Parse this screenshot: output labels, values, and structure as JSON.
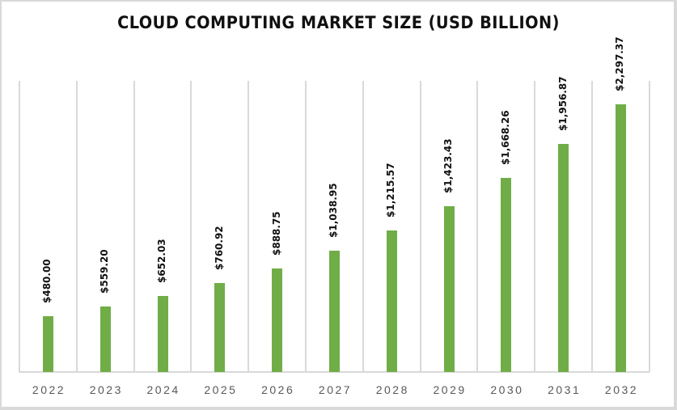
{
  "chart_data": {
    "type": "bar",
    "title": "CLOUD COMPUTING MARKET SIZE (USD BILLION)",
    "xlabel": "",
    "ylabel": "",
    "categories": [
      "2022",
      "2023",
      "2024",
      "2025",
      "2026",
      "2027",
      "2028",
      "2029",
      "2030",
      "2031",
      "2032"
    ],
    "values": [
      480.0,
      559.2,
      652.03,
      760.92,
      888.75,
      1038.95,
      1215.57,
      1423.43,
      1668.26,
      1956.87,
      2297.37
    ],
    "data_labels": [
      "$480.00",
      "$559.20",
      "$652.03",
      "$760.92",
      "$888.75",
      "$1,038.95",
      "$1,215.57",
      "$1,423.43",
      "$1,668.26",
      "$1,956.87",
      "$2,297.37"
    ],
    "ylim": [
      0,
      2500
    ],
    "grid": "vertical category separators",
    "legend": "none",
    "bar_color": "#70ad47"
  }
}
